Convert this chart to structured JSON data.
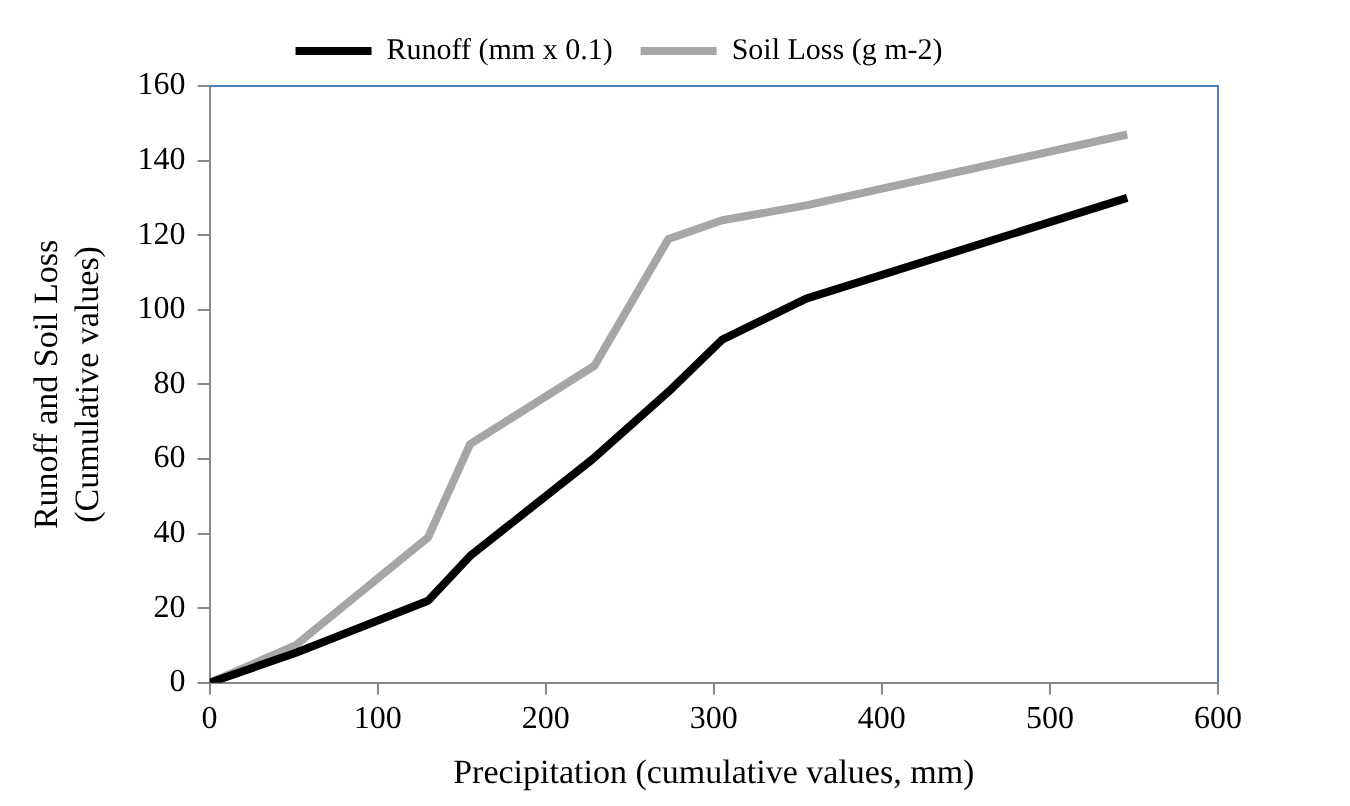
{
  "chart_data": {
    "type": "line",
    "xlabel": "Precipitation (cumulative values, mm)",
    "ylabel": "Runoff and Soil Loss\n(Cumulative values)",
    "xlim": [
      0,
      600
    ],
    "xticks": [
      0,
      100,
      200,
      300,
      400,
      500,
      600
    ],
    "ylim": [
      0,
      160
    ],
    "yticks": [
      0,
      20,
      40,
      60,
      80,
      100,
      120,
      140,
      160
    ],
    "grid": false,
    "legend": "top",
    "marker": "none",
    "line_style": "solid",
    "series": [
      {
        "name": "Runoff (mm x 0.1)",
        "color": "#000000",
        "x": [
          0,
          51,
          130,
          155,
          228,
          273,
          305,
          355,
          546
        ],
        "values": [
          0,
          8,
          22,
          34,
          60,
          78,
          92,
          103,
          130
        ]
      },
      {
        "name": "Soil Loss (g m-2)",
        "color": "#a6a6a6",
        "x": [
          0,
          51,
          130,
          155,
          229,
          273,
          305,
          355,
          546
        ],
        "values": [
          0,
          10,
          39,
          64,
          85,
          119,
          124,
          128,
          147
        ]
      }
    ]
  }
}
